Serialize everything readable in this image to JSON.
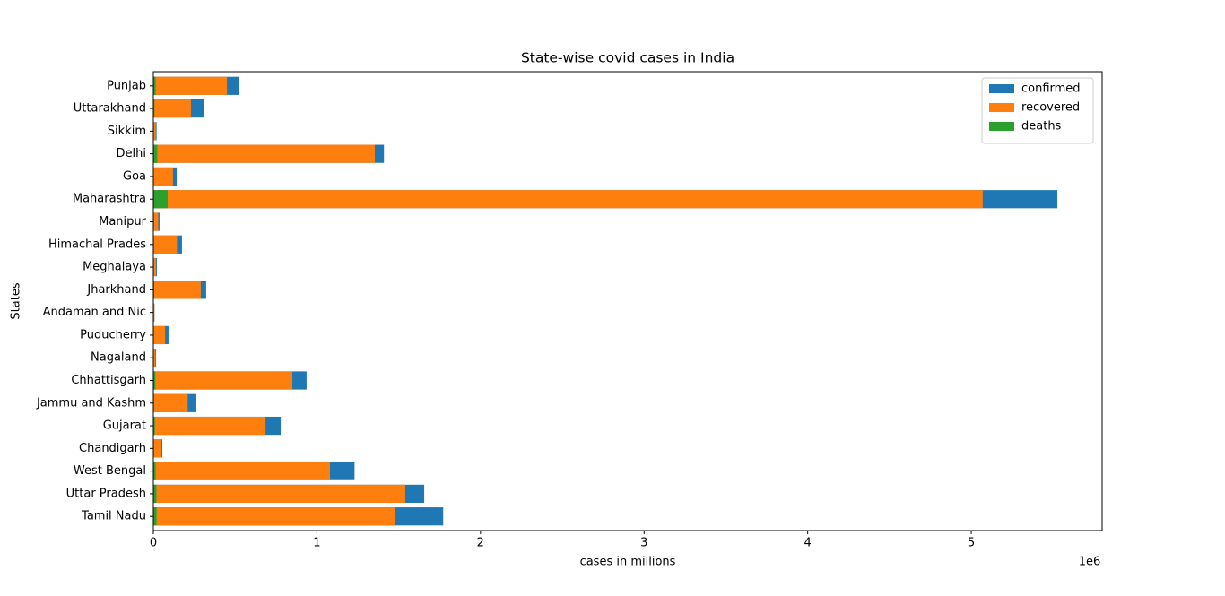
{
  "chart_data": {
    "type": "barh_overlap",
    "title": "State-wise covid cases in India",
    "xlabel": "cases in millions",
    "ylabel": "States",
    "x_offset_text": "1e6",
    "categories": [
      "Tamil Nadu",
      "Uttar Pradesh",
      "West Bengal",
      "Chandigarh",
      "Gujarat",
      "Jammu and Kashm",
      "Chhattisgarh",
      "Nagaland",
      "Puducherry",
      "Andaman and Nic",
      "Jharkhand",
      "Meghalaya",
      "Himachal Prades",
      "Manipur",
      "Maharashtra",
      "Goa",
      "Delhi",
      "Sikkim",
      "Uttarakhand",
      "Punjab"
    ],
    "series": [
      {
        "name": "confirmed",
        "color": "#1f77b4",
        "values": [
          1772000,
          1656000,
          1230000,
          55000,
          779000,
          263000,
          937000,
          17000,
          93000,
          7000,
          323000,
          22000,
          175000,
          38000,
          5526000,
          143000,
          1410000,
          20000,
          307000,
          526000
        ]
      },
      {
        "name": "recovered",
        "color": "#ff7f0e",
        "values": [
          1475000,
          1540000,
          1080000,
          48000,
          686000,
          210000,
          850000,
          13000,
          72000,
          6800,
          290000,
          17000,
          145000,
          30000,
          5070000,
          120000,
          1354000,
          15000,
          230000,
          450000
        ]
      },
      {
        "name": "deaths",
        "color": "#2ca02c",
        "values": [
          20000,
          19000,
          14000,
          650,
          9500,
          3500,
          12000,
          250,
          1300,
          120,
          5000,
          400,
          3000,
          600,
          88000,
          2500,
          24000,
          300,
          7000,
          14000
        ]
      }
    ],
    "xlim": [
      0,
      5800000
    ],
    "xticks": [
      0,
      {
        "value": 1000000,
        "label": "1"
      },
      {
        "value": 2000000,
        "label": "2"
      },
      {
        "value": 3000000,
        "label": "3"
      },
      {
        "value": 4000000,
        "label": "4"
      },
      {
        "value": 5000000,
        "label": "5"
      }
    ],
    "legend": "upper right"
  }
}
